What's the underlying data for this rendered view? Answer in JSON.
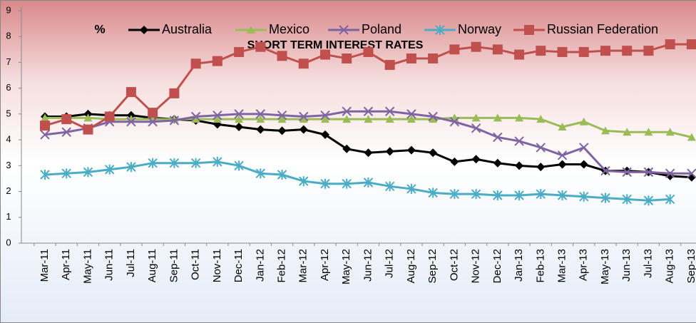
{
  "chart_data": {
    "type": "line",
    "title": "SHORT TERM INTEREST RATES",
    "unit_label": "%",
    "categories": [
      "Mar-11",
      "Apr-11",
      "May-11",
      "Jun-11",
      "Jul-11",
      "Aug-11",
      "Sep-11",
      "Oct-11",
      "Nov-11",
      "Dec-11",
      "Jan-12",
      "Feb-12",
      "Mar-12",
      "Apr-12",
      "May-12",
      "Jun-12",
      "Jul-12",
      "Aug-12",
      "Sep-12",
      "Oct-12",
      "Nov-12",
      "Dec-12",
      "Jan-13",
      "Feb-13",
      "Mar-13",
      "Apr-13",
      "May-13",
      "Jun-13",
      "Jul-13",
      "Aug-13",
      "Sep-13"
    ],
    "series": [
      {
        "name": "Australia",
        "color": "#000000",
        "marker": "diamond",
        "values": [
          4.9,
          4.9,
          5.0,
          4.95,
          4.95,
          4.85,
          4.8,
          4.75,
          4.6,
          4.5,
          4.4,
          4.35,
          4.4,
          4.2,
          3.65,
          3.5,
          3.55,
          3.6,
          3.5,
          3.15,
          3.25,
          3.1,
          3.0,
          2.95,
          3.05,
          3.05,
          2.8,
          2.8,
          2.75,
          2.6,
          2.55
        ]
      },
      {
        "name": "Mexico",
        "color": "#9bbb59",
        "marker": "triangle",
        "values": [
          4.85,
          4.85,
          4.85,
          4.8,
          4.8,
          4.8,
          4.8,
          4.8,
          4.8,
          4.8,
          4.8,
          4.8,
          4.8,
          4.8,
          4.8,
          4.8,
          4.8,
          4.8,
          4.8,
          4.85,
          4.85,
          4.85,
          4.85,
          4.8,
          4.5,
          4.7,
          4.35,
          4.3,
          4.3,
          4.3,
          4.1
        ]
      },
      {
        "name": "Poland",
        "color": "#8064a2",
        "marker": "x",
        "values": [
          4.2,
          4.3,
          4.45,
          4.7,
          4.7,
          4.7,
          4.75,
          4.9,
          4.95,
          5.0,
          5.0,
          4.95,
          4.9,
          4.95,
          5.1,
          5.1,
          5.1,
          5.0,
          4.9,
          4.7,
          4.45,
          4.1,
          3.95,
          3.7,
          3.4,
          3.7,
          2.8,
          2.75,
          2.75,
          2.7,
          2.7
        ]
      },
      {
        "name": "Norway",
        "color": "#4bacc6",
        "marker": "star",
        "values": [
          2.65,
          2.7,
          2.75,
          2.85,
          2.95,
          3.1,
          3.1,
          3.1,
          3.15,
          3.0,
          2.7,
          2.65,
          2.4,
          2.3,
          2.3,
          2.35,
          2.2,
          2.1,
          1.95,
          1.9,
          1.9,
          1.85,
          1.85,
          1.9,
          1.85,
          1.8,
          1.75,
          1.7,
          1.65,
          1.7,
          null
        ]
      },
      {
        "name": "Russian Federation",
        "color": "#c0504d",
        "marker": "square",
        "values": [
          4.55,
          4.8,
          4.4,
          4.9,
          5.85,
          5.05,
          5.8,
          6.95,
          7.05,
          7.4,
          7.6,
          7.25,
          6.95,
          7.3,
          7.15,
          7.4,
          6.9,
          7.15,
          7.15,
          7.5,
          7.6,
          7.5,
          7.3,
          7.45,
          7.4,
          7.4,
          7.45,
          7.45,
          7.45,
          7.7,
          7.7
        ]
      }
    ],
    "ylim": [
      0,
      9
    ],
    "yticks": [
      0,
      1,
      2,
      3,
      4,
      5,
      6,
      7,
      8,
      9
    ],
    "grid": false
  }
}
